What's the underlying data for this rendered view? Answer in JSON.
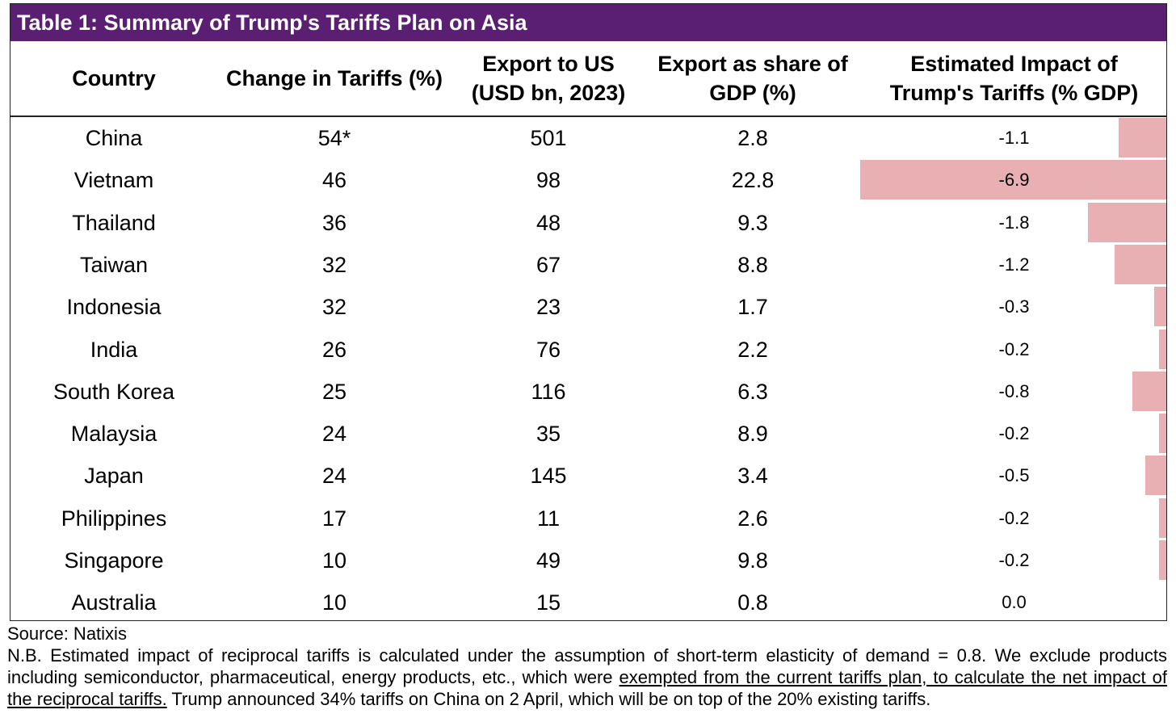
{
  "title": "Table 1: Summary of Trump's Tariffs Plan on Asia",
  "headers": {
    "country": "Country",
    "change": "Change in Tariffs (%)",
    "export_us": "Export to US\n(USD bn, 2023)",
    "export_share": "Export as share of\nGDP (%)",
    "impact": "Estimated Impact of\nTrump's Tariffs (% GDP)"
  },
  "rows": [
    {
      "country": "China",
      "change": "54*",
      "export_us": "501",
      "export_share": "2.8",
      "impact": "-1.1",
      "impact_value": -1.1
    },
    {
      "country": "Vietnam",
      "change": "46",
      "export_us": "98",
      "export_share": "22.8",
      "impact": "-6.9",
      "impact_value": -6.9
    },
    {
      "country": "Thailand",
      "change": "36",
      "export_us": "48",
      "export_share": "9.3",
      "impact": "-1.8",
      "impact_value": -1.8
    },
    {
      "country": "Taiwan",
      "change": "32",
      "export_us": "67",
      "export_share": "8.8",
      "impact": "-1.2",
      "impact_value": -1.2
    },
    {
      "country": "Indonesia",
      "change": "32",
      "export_us": "23",
      "export_share": "1.7",
      "impact": "-0.3",
      "impact_value": -0.3
    },
    {
      "country": "India",
      "change": "26",
      "export_us": "76",
      "export_share": "2.2",
      "impact": "-0.2",
      "impact_value": -0.2
    },
    {
      "country": "South Korea",
      "change": "25",
      "export_us": "116",
      "export_share": "6.3",
      "impact": "-0.8",
      "impact_value": -0.8
    },
    {
      "country": "Malaysia",
      "change": "24",
      "export_us": "35",
      "export_share": "8.9",
      "impact": "-0.2",
      "impact_value": -0.2
    },
    {
      "country": "Japan",
      "change": "24",
      "export_us": "145",
      "export_share": "3.4",
      "impact": "-0.5",
      "impact_value": -0.5
    },
    {
      "country": "Philippines",
      "change": "17",
      "export_us": "11",
      "export_share": "2.6",
      "impact": "-0.2",
      "impact_value": -0.2
    },
    {
      "country": "Singapore",
      "change": "10",
      "export_us": "49",
      "export_share": "9.8",
      "impact": "-0.2",
      "impact_value": -0.2
    },
    {
      "country": "Australia",
      "change": "10",
      "export_us": "15",
      "export_share": "0.8",
      "impact": "0.0",
      "impact_value": 0.0
    }
  ],
  "colors": {
    "title_bg": "#5a1e73",
    "bar": "#e8b0b2"
  },
  "notes": {
    "source": "Source: Natixis",
    "nb_part1": "N.B. Estimated impact of reciprocal tariffs is calculated under the assumption of short-term elasticity of demand = 0.8. We exclude products including semiconductor, pharmaceutical, energy products, etc., which were ",
    "nb_underlined": "exempted from the current tariffs plan, to calculate the net impact of the reciprocal tariffs.",
    "nb_part2": " Trump announced 34% tariffs on China on 2 April, which will be on top of the 20% existing tariffs."
  }
}
